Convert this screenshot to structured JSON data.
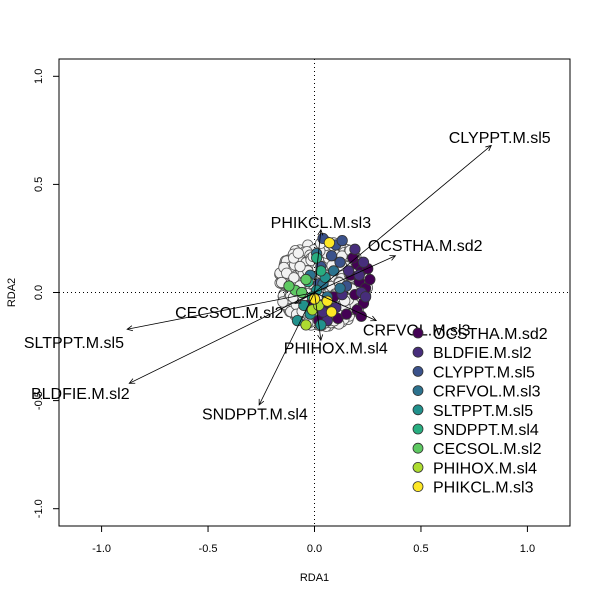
{
  "chart_data": {
    "type": "scatter",
    "title": "",
    "xlabel": "RDA1",
    "ylabel": "RDA2",
    "xlim": [
      -1.2,
      1.2
    ],
    "ylim": [
      -1.08,
      1.08
    ],
    "x_ticks": [
      -1.0,
      -0.5,
      0.0,
      0.5,
      1.0
    ],
    "x_tick_labels": [
      "-1.0",
      "-0.5",
      "0.0",
      "0.5",
      "1.0"
    ],
    "y_ticks": [
      -1.0,
      -0.5,
      0.0,
      0.5,
      1.0
    ],
    "y_tick_labels": [
      "-1.0",
      "-0.5",
      "0.0",
      "0.5",
      "1.0"
    ],
    "reference_lines": {
      "x": 0,
      "y": 0,
      "style": "dotted"
    },
    "legend_position": "bottom-right",
    "background_points_color": "#f2f2f2",
    "vectors": [
      {
        "label": "CLYPPT.M.sl5",
        "x": 0.83,
        "y": 0.68
      },
      {
        "label": "OCSTHA.M.sd2",
        "x": 0.38,
        "y": 0.17
      },
      {
        "label": "PHIKCL.M.sl3",
        "x": 0.03,
        "y": 0.29
      },
      {
        "label": "CRFVOL.M.sl3",
        "x": 0.29,
        "y": -0.13
      },
      {
        "label": "PHIHOX.M.sl4",
        "x": 0.03,
        "y": -0.22
      },
      {
        "label": "SNDPPT.M.sl4",
        "x": -0.26,
        "y": -0.52
      },
      {
        "label": "CECSOL.M.sl2",
        "x": -0.09,
        "y": -0.05
      },
      {
        "label": "SLTPPT.M.sl5",
        "x": -0.88,
        "y": -0.17
      },
      {
        "label": "BLDFIE.M.sl2",
        "x": -0.87,
        "y": -0.42
      }
    ],
    "vector_label_positions": [
      {
        "x": 0.87,
        "y": 0.72
      },
      {
        "x": 0.52,
        "y": 0.22
      },
      {
        "x": 0.03,
        "y": 0.325
      },
      {
        "x": 0.48,
        "y": -0.17
      },
      {
        "x": 0.1,
        "y": -0.255
      },
      {
        "x": -0.28,
        "y": -0.56
      },
      {
        "x": -0.4,
        "y": -0.09
      },
      {
        "x": -1.13,
        "y": -0.23
      },
      {
        "x": -1.1,
        "y": -0.465
      }
    ],
    "series": [
      {
        "name": "OCSTHA.M.sd2",
        "color": "#440154",
        "points": [
          [
            0.2,
            0.13
          ],
          [
            0.22,
            0.1
          ],
          [
            0.25,
            0.11
          ],
          [
            0.21,
            0.05
          ],
          [
            0.24,
            0.02
          ],
          [
            0.19,
            -0.01
          ],
          [
            0.23,
            -0.05
          ],
          [
            0.2,
            -0.08
          ],
          [
            0.26,
            0.06
          ],
          [
            0.18,
            0.16
          ],
          [
            0.05,
            -0.05
          ],
          [
            0.07,
            -0.09
          ],
          [
            0.11,
            -0.12
          ],
          [
            0.02,
            -0.13
          ],
          [
            0.09,
            -0.02
          ],
          [
            -0.03,
            -0.06
          ],
          [
            0.15,
            -0.1
          ],
          [
            0.0,
            -0.03
          ],
          [
            0.22,
            -0.11
          ],
          [
            0.17,
            0.08
          ]
        ]
      },
      {
        "name": "BLDFIE.M.sl2",
        "color": "#472d7b",
        "points": [
          [
            0.19,
            0.2
          ],
          [
            0.23,
            0.14
          ],
          [
            0.21,
            0.08
          ],
          [
            0.22,
            0.0
          ],
          [
            0.16,
            0.1
          ],
          [
            0.06,
            -0.13
          ],
          [
            0.1,
            -0.07
          ],
          [
            0.24,
            -0.02
          ],
          [
            0.13,
            -0.01
          ],
          [
            0.04,
            -0.09
          ]
        ]
      },
      {
        "name": "CLYPPT.M.sl5",
        "color": "#3b528b",
        "points": [
          [
            0.1,
            0.22
          ],
          [
            0.13,
            0.24
          ],
          [
            0.08,
            0.17
          ],
          [
            0.03,
            0.12
          ],
          [
            0.15,
            0.03
          ],
          [
            0.02,
            0.04
          ],
          [
            0.12,
            0.14
          ],
          [
            0.04,
            0.25
          ]
        ]
      },
      {
        "name": "CRFVOL.M.sl3",
        "color": "#2c728e",
        "points": [
          [
            0.04,
            0.04
          ],
          [
            0.09,
            0.1
          ],
          [
            0.12,
            0.02
          ],
          [
            0.06,
            -0.02
          ],
          [
            -0.02,
            0.08
          ],
          [
            0.01,
            0.18
          ]
        ]
      },
      {
        "name": "SLTPPT.M.sl5",
        "color": "#21918c",
        "points": [
          [
            -0.02,
            -0.1
          ],
          [
            -0.05,
            -0.06
          ],
          [
            -0.08,
            -0.13
          ],
          [
            0.03,
            -0.15
          ],
          [
            0.01,
            0.01
          ],
          [
            0.05,
            0.07
          ]
        ]
      },
      {
        "name": "SNDPPT.M.sl4",
        "color": "#28ae80",
        "points": [
          [
            0.01,
            0.16
          ],
          [
            -0.03,
            0.05
          ],
          [
            -0.01,
            -0.02
          ],
          [
            0.03,
            0.1
          ]
        ]
      },
      {
        "name": "CECSOL.M.sl2",
        "color": "#5ec962",
        "points": [
          [
            -0.09,
            0.01
          ],
          [
            -0.12,
            0.03
          ],
          [
            -0.06,
            0.0
          ],
          [
            -0.04,
            0.06
          ]
        ]
      },
      {
        "name": "PHIHOX.M.sl4",
        "color": "#addc30",
        "points": [
          [
            -0.04,
            -0.15
          ],
          [
            -0.01,
            -0.08
          ],
          [
            0.02,
            -0.06
          ]
        ]
      },
      {
        "name": "PHIKCL.M.sl3",
        "color": "#fde725",
        "points": [
          [
            0.0,
            -0.03
          ],
          [
            0.06,
            -0.04
          ],
          [
            0.07,
            0.23
          ],
          [
            0.08,
            -0.09
          ]
        ]
      }
    ]
  }
}
